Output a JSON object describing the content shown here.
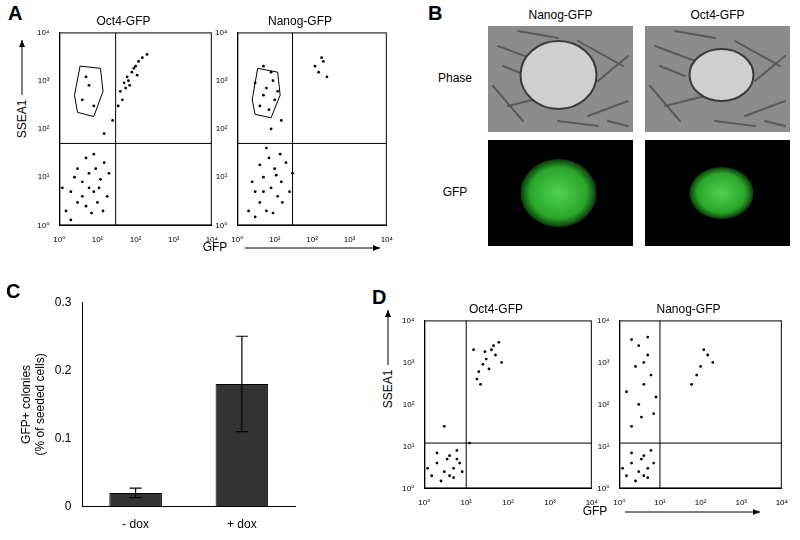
{
  "chart_data": [
    {
      "type": "scatter",
      "panel": "A",
      "title": "Oct4-GFP",
      "x_label": "GFP",
      "y_label": "SSEA1",
      "color": "#000000",
      "log": true,
      "grid": false,
      "xlim": [
        1,
        10000
      ],
      "ylim": [
        1,
        10000
      ],
      "xticks": [
        {
          "value": 1,
          "label": "10⁰"
        },
        {
          "value": 10,
          "label": "10¹"
        },
        {
          "value": 100,
          "label": "10²"
        },
        {
          "value": 1000,
          "label": "10³"
        },
        {
          "value": 10000,
          "label": "10⁴"
        }
      ],
      "yticks": [
        {
          "value": 1,
          "label": "10⁰"
        },
        {
          "value": 10,
          "label": "10¹"
        },
        {
          "value": 100,
          "label": "10²"
        },
        {
          "value": 1000,
          "label": "10³"
        },
        {
          "value": 10000,
          "label": "10⁴"
        }
      ],
      "quadrant": {
        "x": 30,
        "y": 50
      },
      "gate": [
        [
          2.5,
          500
        ],
        [
          3.5,
          2000
        ],
        [
          12,
          1800
        ],
        [
          14,
          600
        ],
        [
          8,
          180
        ],
        [
          3,
          220
        ]
      ],
      "x": [
        1.5,
        2,
        3,
        4,
        5,
        6,
        8,
        10,
        12,
        15,
        3,
        2,
        7,
        9,
        4,
        6,
        11,
        18,
        5,
        2.5,
        14,
        20,
        1.2,
        8,
        40,
        60,
        80,
        50,
        100,
        70,
        120,
        45,
        90,
        150,
        35,
        65,
        200,
        55,
        110,
        4,
        6,
        8,
        5,
        25,
        15
      ],
      "values": [
        2,
        5,
        3,
        8,
        2.5,
        12,
        5,
        3,
        9,
        20,
        15,
        1.3,
        1.8,
        15,
        4,
        6,
        6,
        4,
        25,
        10,
        2,
        12,
        6,
        30,
        600,
        1200,
        1500,
        900,
        2000,
        800,
        2500,
        400,
        1800,
        3000,
        300,
        1000,
        3500,
        700,
        1300,
        400,
        800,
        300,
        1200,
        150,
        80
      ]
    },
    {
      "type": "scatter",
      "title": "Nanog-GFP",
      "color": "#000000",
      "log": true,
      "grid": false,
      "xlim": [
        1,
        10000
      ],
      "ylim": [
        1,
        10000
      ],
      "xticks": [
        {
          "value": 1,
          "label": "10⁰"
        },
        {
          "value": 10,
          "label": "10¹"
        },
        {
          "value": 100,
          "label": "10²"
        },
        {
          "value": 1000,
          "label": "10³"
        },
        {
          "value": 10000,
          "label": "10⁴"
        }
      ],
      "yticks": [
        {
          "value": 1,
          "label": "10⁰"
        },
        {
          "value": 10,
          "label": "10¹"
        },
        {
          "value": 100,
          "label": "10²"
        },
        {
          "value": 1000,
          "label": "10³"
        },
        {
          "value": 10000,
          "label": "10⁴"
        }
      ],
      "quadrant": {
        "x": 30,
        "y": 50
      },
      "gate": [
        [
          2.5,
          400
        ],
        [
          3.5,
          1800
        ],
        [
          12,
          1500
        ],
        [
          14,
          500
        ],
        [
          8,
          170
        ],
        [
          3,
          200
        ]
      ],
      "x": [
        2,
        3,
        4,
        5,
        6,
        8,
        10,
        12,
        15,
        20,
        3,
        7,
        9,
        25,
        5,
        11,
        4,
        16,
        6,
        30,
        2.5,
        14,
        4,
        6,
        8,
        5,
        10,
        3,
        7,
        9,
        5,
        12,
        150,
        200,
        120,
        250,
        180,
        8,
        15
      ],
      "values": [
        2,
        5,
        3,
        10,
        2,
        6,
        15,
        4,
        8,
        20,
        1.5,
        25,
        1.8,
        5,
        5,
        11,
        18,
        3,
        40,
        12,
        8,
        30,
        300,
        700,
        1500,
        500,
        400,
        900,
        250,
        1000,
        2000,
        600,
        1500,
        2500,
        2000,
        1200,
        3000,
        100,
        150
      ]
    },
    {
      "type": "bar",
      "panel": "C",
      "categories": [
        "- dox",
        "+ dox"
      ],
      "values": [
        0.02,
        0.18
      ],
      "error": [
        0.007,
        0.07
      ],
      "color": "#333333",
      "grid": false,
      "y_label": [
        "GFP+ colonies",
        "(% of seeded cells)"
      ],
      "ylim": [
        0,
        0.3
      ],
      "yticks": [
        0,
        0.1,
        0.2,
        0.3
      ]
    },
    {
      "type": "scatter",
      "panel": "D",
      "title": "Oct4-GFP",
      "x_label": "GFP",
      "y_label": "SSEA1",
      "color": "#000000",
      "log": true,
      "grid": false,
      "xlim": [
        1,
        10000
      ],
      "ylim": [
        1,
        10000
      ],
      "xticks": [
        {
          "value": 1,
          "label": "10⁰"
        },
        {
          "value": 10,
          "label": "10¹"
        },
        {
          "value": 100,
          "label": "10²"
        },
        {
          "value": 1000,
          "label": "10³"
        },
        {
          "value": 10000,
          "label": "10⁴"
        }
      ],
      "yticks": [
        {
          "value": 1,
          "label": "10⁰"
        },
        {
          "value": 10,
          "label": "10¹"
        },
        {
          "value": 100,
          "label": "10²"
        },
        {
          "value": 1000,
          "label": "10³"
        },
        {
          "value": 10000,
          "label": "10⁴"
        }
      ],
      "quadrant": {
        "x": 10,
        "y": 12
      },
      "x": [
        1.5,
        2,
        3,
        4,
        5,
        6,
        2.5,
        3.5,
        5,
        7,
        1.2,
        4,
        6,
        2,
        8,
        20,
        30,
        40,
        25,
        50,
        35,
        60,
        18,
        45,
        28,
        70,
        22,
        15,
        3,
        12
      ],
      "values": [
        2,
        4,
        2.5,
        6,
        3,
        8,
        1.5,
        5,
        1.8,
        4,
        3,
        2,
        5,
        7,
        2.5,
        600,
        1200,
        2000,
        900,
        1500,
        700,
        3000,
        400,
        2500,
        1800,
        1000,
        300,
        2000,
        30,
        12
      ]
    },
    {
      "type": "scatter",
      "title": "Nanog-GFP",
      "color": "#000000",
      "log": true,
      "grid": false,
      "xlim": [
        1,
        10000
      ],
      "ylim": [
        1,
        10000
      ],
      "xticks": [
        {
          "value": 1,
          "label": "10⁰"
        },
        {
          "value": 10,
          "label": "10¹"
        },
        {
          "value": 100,
          "label": "10²"
        },
        {
          "value": 1000,
          "label": "10³"
        },
        {
          "value": 10000,
          "label": "10⁴"
        }
      ],
      "yticks": [
        {
          "value": 1,
          "label": "10⁰"
        },
        {
          "value": 10,
          "label": "10¹"
        },
        {
          "value": 100,
          "label": "10²"
        },
        {
          "value": 1000,
          "label": "10³"
        },
        {
          "value": 10000,
          "label": "10⁴"
        }
      ],
      "quadrant": {
        "x": 10,
        "y": 12
      },
      "x": [
        1.5,
        2,
        3,
        4,
        5,
        6,
        2.5,
        3.5,
        5,
        7,
        1.2,
        4,
        2,
        2,
        3,
        4,
        2.5,
        5,
        3,
        6,
        1.5,
        7,
        4,
        2,
        8,
        3.5,
        5,
        60,
        100,
        150,
        80,
        200,
        120
      ],
      "values": [
        2,
        4,
        2.5,
        6,
        3,
        8,
        1.5,
        5,
        1.8,
        4,
        3,
        2,
        7,
        30,
        100,
        300,
        800,
        1500,
        2500,
        500,
        200,
        60,
        1000,
        3500,
        150,
        50,
        4000,
        300,
        800,
        1500,
        500,
        1000,
        2000
      ]
    }
  ],
  "panel_B": {
    "panel": "B",
    "columns": [
      "Nanog-GFP",
      "Oct4-GFP"
    ],
    "rows": [
      "Phase",
      "GFP"
    ]
  }
}
